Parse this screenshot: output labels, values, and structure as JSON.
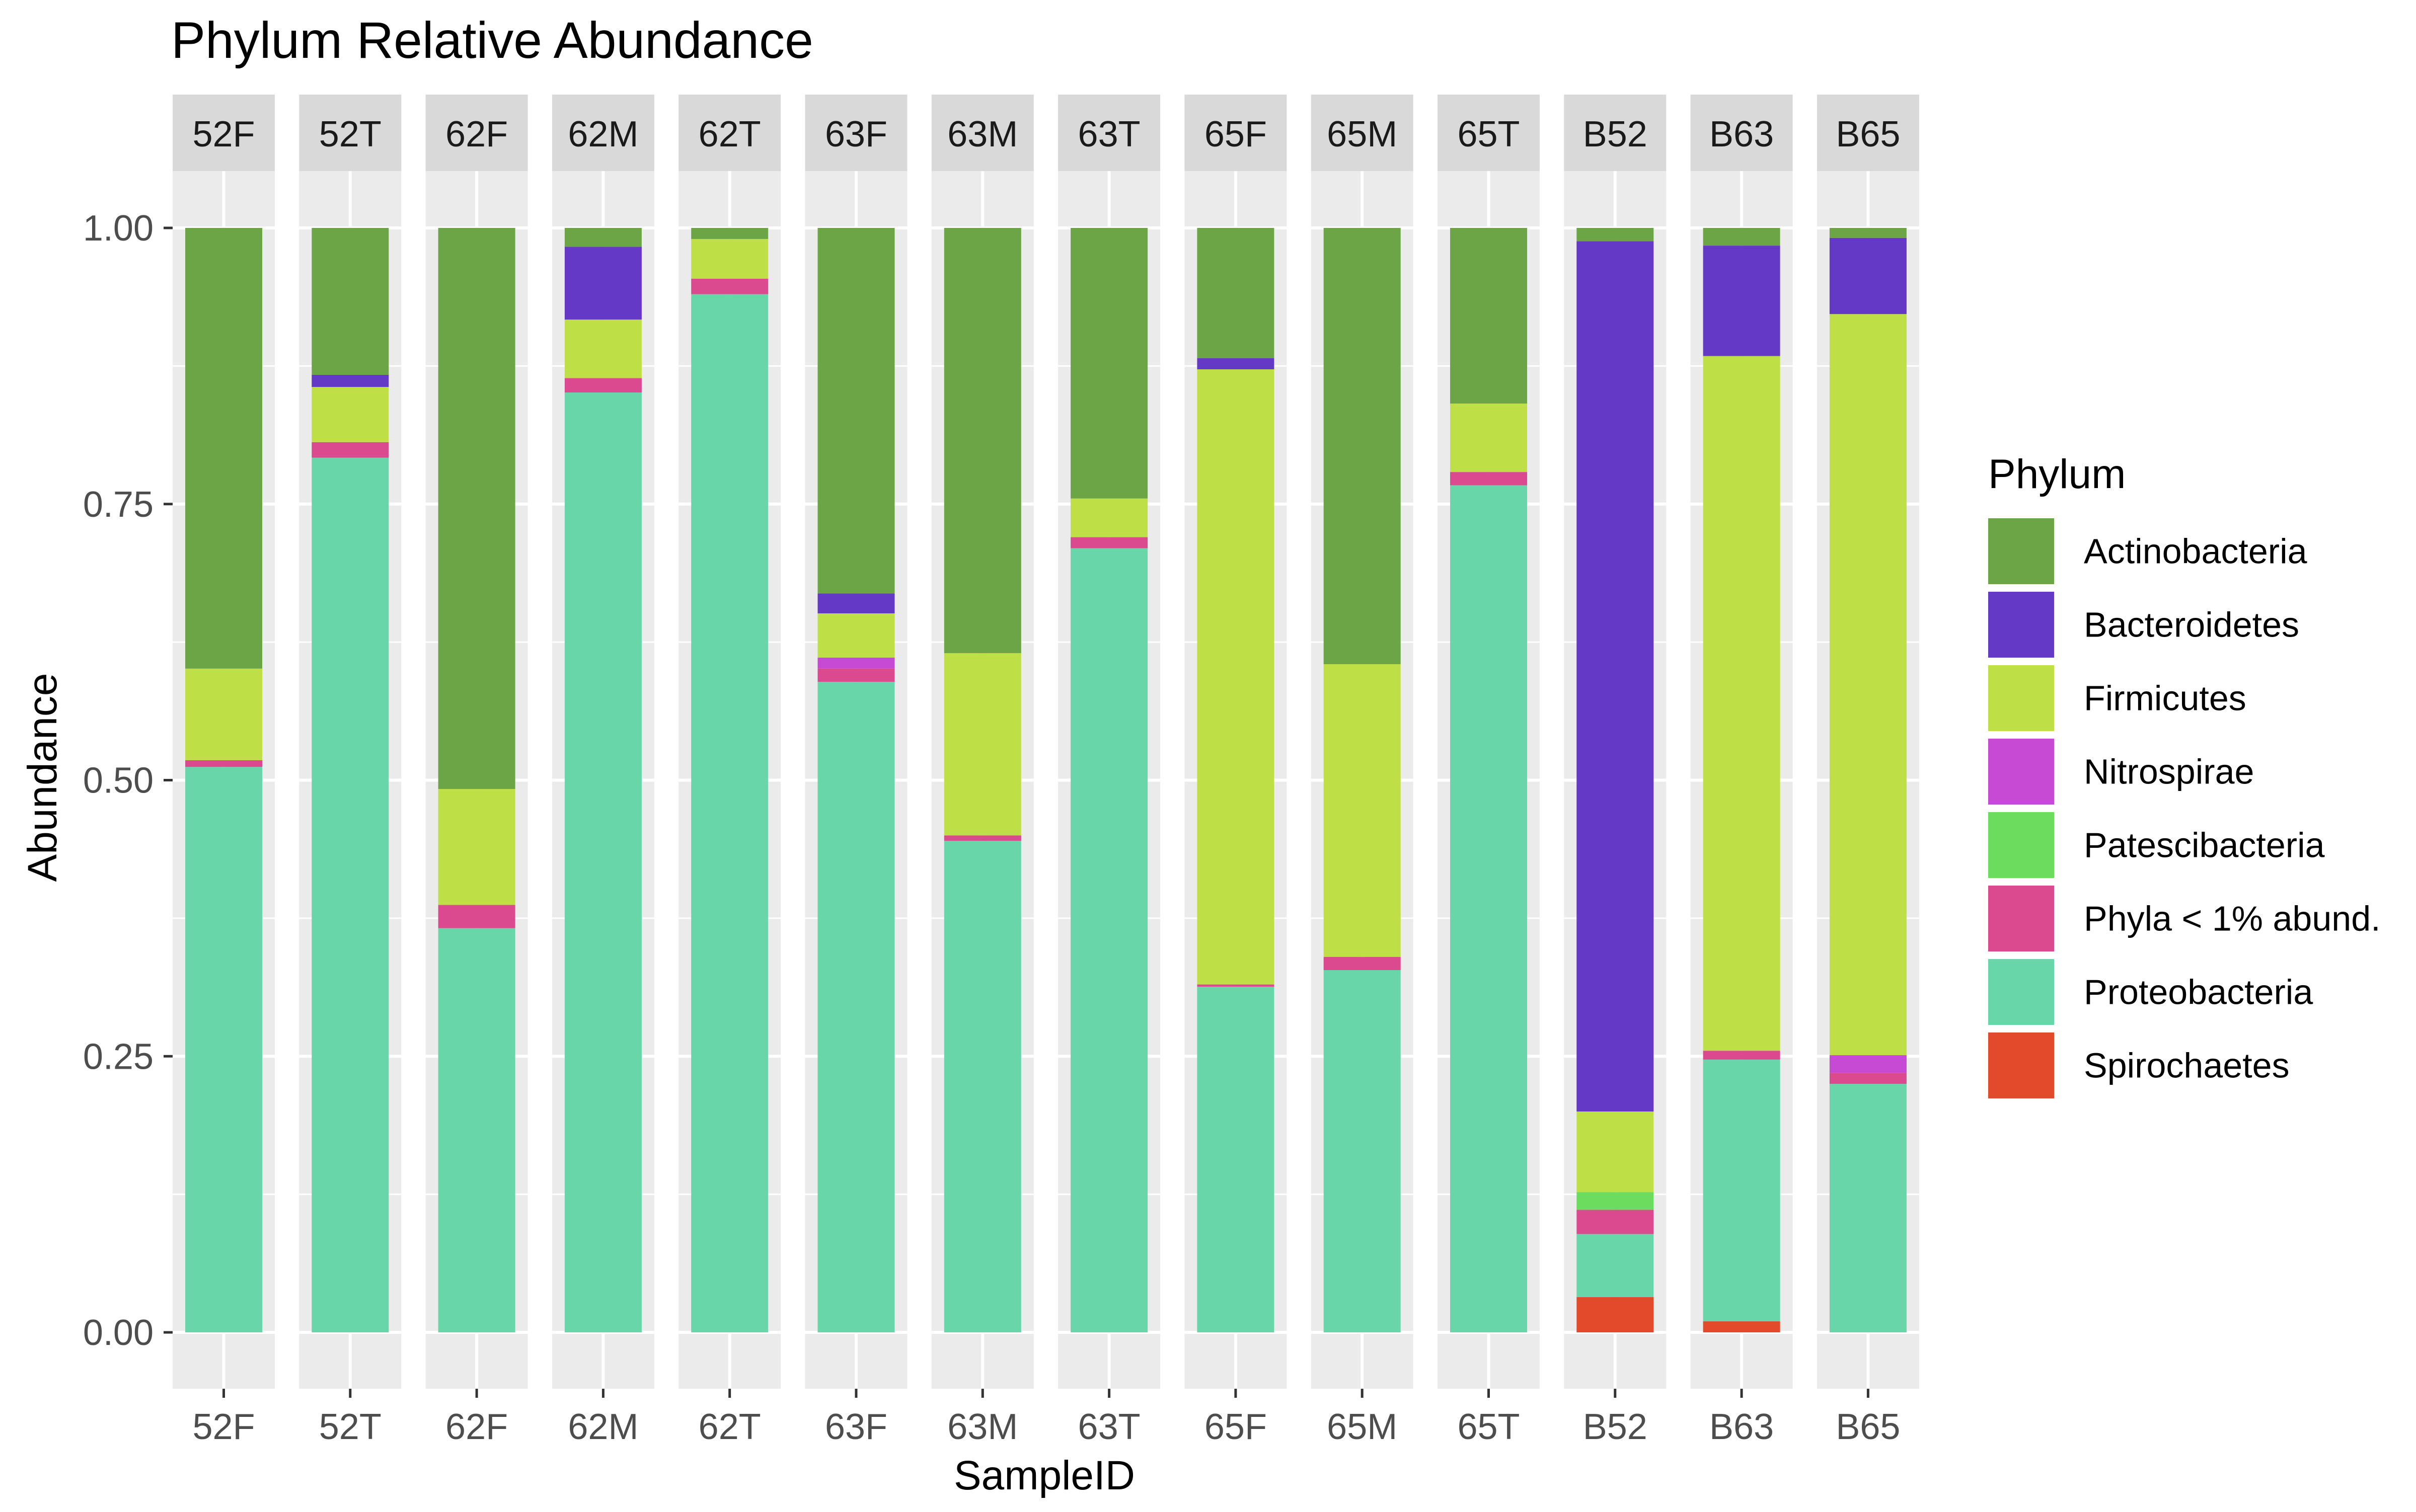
{
  "chart_data": {
    "type": "bar",
    "stacked": true,
    "faceted": true,
    "title": "Phylum Relative Abundance",
    "xlabel": "SampleID",
    "ylabel": "Abundance",
    "ylim": [
      0,
      1
    ],
    "yticks": [
      "0.00",
      "0.25",
      "0.50",
      "0.75",
      "1.00"
    ],
    "ytick_values": [
      0,
      0.25,
      0.5,
      0.75,
      1.0
    ],
    "grid": true,
    "legend": {
      "title": "Phylum",
      "position": "right"
    },
    "categories": [
      "52F",
      "52T",
      "62F",
      "62M",
      "62T",
      "63F",
      "63M",
      "63T",
      "65F",
      "65M",
      "65T",
      "B52",
      "B63",
      "B65"
    ],
    "series": [
      {
        "name": "Spirochaetes",
        "color": "#E34A2C",
        "values": [
          0,
          0,
          0,
          0,
          0,
          0,
          0,
          0,
          0,
          0,
          0,
          0.032,
          0.01,
          0
        ]
      },
      {
        "name": "Proteobacteria",
        "color": "#68D6A9",
        "values": [
          0.512,
          0.792,
          0.366,
          0.851,
          0.94,
          0.589,
          0.445,
          0.71,
          0.313,
          0.328,
          0.767,
          0.057,
          0.237,
          0.225
        ]
      },
      {
        "name": "Phyla < 1% abund.",
        "color": "#DB4A8E",
        "values": [
          0.006,
          0.014,
          0.021,
          0.013,
          0.014,
          0.012,
          0.005,
          0.01,
          0.002,
          0.012,
          0.012,
          0.022,
          0.008,
          0.01
        ]
      },
      {
        "name": "Patescibacteria",
        "color": "#6CDC5E",
        "values": [
          0,
          0,
          0,
          0,
          0,
          0,
          0,
          0,
          0,
          0,
          0,
          0.016,
          0,
          0
        ]
      },
      {
        "name": "Nitrospirae",
        "color": "#C64AD3",
        "values": [
          0,
          0,
          0,
          0,
          0,
          0.01,
          0,
          0,
          0,
          0,
          0,
          0,
          0,
          0.016
        ]
      },
      {
        "name": "Firmicutes",
        "color": "#BEDF46",
        "values": [
          0.083,
          0.05,
          0.105,
          0.053,
          0.036,
          0.04,
          0.165,
          0.035,
          0.557,
          0.265,
          0.062,
          0.073,
          0.629,
          0.671
        ]
      },
      {
        "name": "Bacteroidetes",
        "color": "#6439C5",
        "values": [
          0,
          0.011,
          0,
          0.066,
          0,
          0.018,
          0,
          0,
          0.01,
          0,
          0,
          0.788,
          0.1,
          0.069
        ]
      },
      {
        "name": "Actinobacteria",
        "color": "#6BA545",
        "values": [
          0.399,
          0.133,
          0.508,
          0.017,
          0.01,
          0.331,
          0.385,
          0.245,
          0.118,
          0.395,
          0.159,
          0.012,
          0.016,
          0.009
        ]
      }
    ],
    "legend_order": [
      "Actinobacteria",
      "Bacteroidetes",
      "Firmicutes",
      "Nitrospirae",
      "Patescibacteria",
      "Phyla < 1% abund.",
      "Proteobacteria",
      "Spirochaetes"
    ]
  },
  "colors": {
    "panel_background": "#EBEBEB",
    "strip_background": "#D9D9D9",
    "grid": "#FFFFFF",
    "axis_text": "#4D4D4D"
  }
}
